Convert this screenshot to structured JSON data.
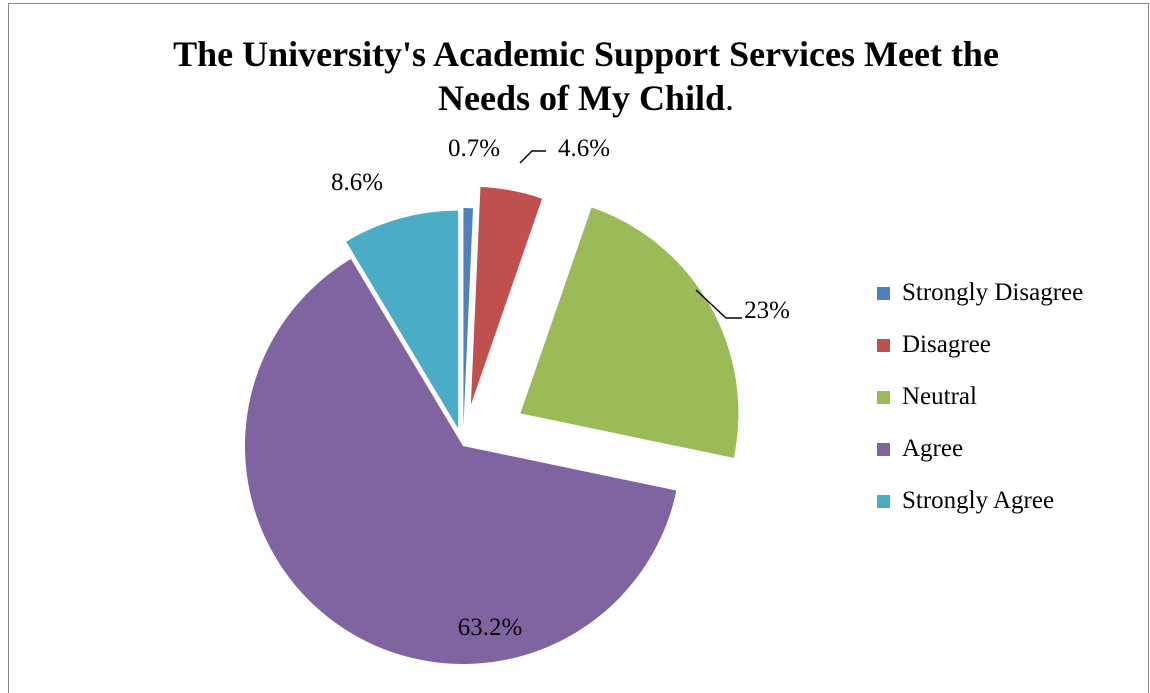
{
  "chart_data": {
    "type": "pie",
    "title_line1": "The University's Academic Support Services Meet the",
    "title_line2": "Needs of My Child",
    "title_period": ".",
    "categories": [
      "Strongly Disagree",
      "Disagree",
      "Neutral",
      "Agree",
      "Strongly Agree"
    ],
    "values": [
      0.7,
      4.6,
      23,
      63.2,
      8.6
    ],
    "data_labels": [
      "0.7%",
      "4.6%",
      "23%",
      "63.2%",
      "8.6%"
    ],
    "colors": [
      "#4f81bd",
      "#c0504d",
      "#9bbb59",
      "#8064a2",
      "#4bacc6"
    ],
    "exploded": true,
    "start_angle": "top, clockwise",
    "legend": {
      "position": "right",
      "items": [
        "Strongly Disagree",
        "Disagree",
        "Neutral",
        "Agree",
        "Strongly Agree"
      ]
    }
  }
}
